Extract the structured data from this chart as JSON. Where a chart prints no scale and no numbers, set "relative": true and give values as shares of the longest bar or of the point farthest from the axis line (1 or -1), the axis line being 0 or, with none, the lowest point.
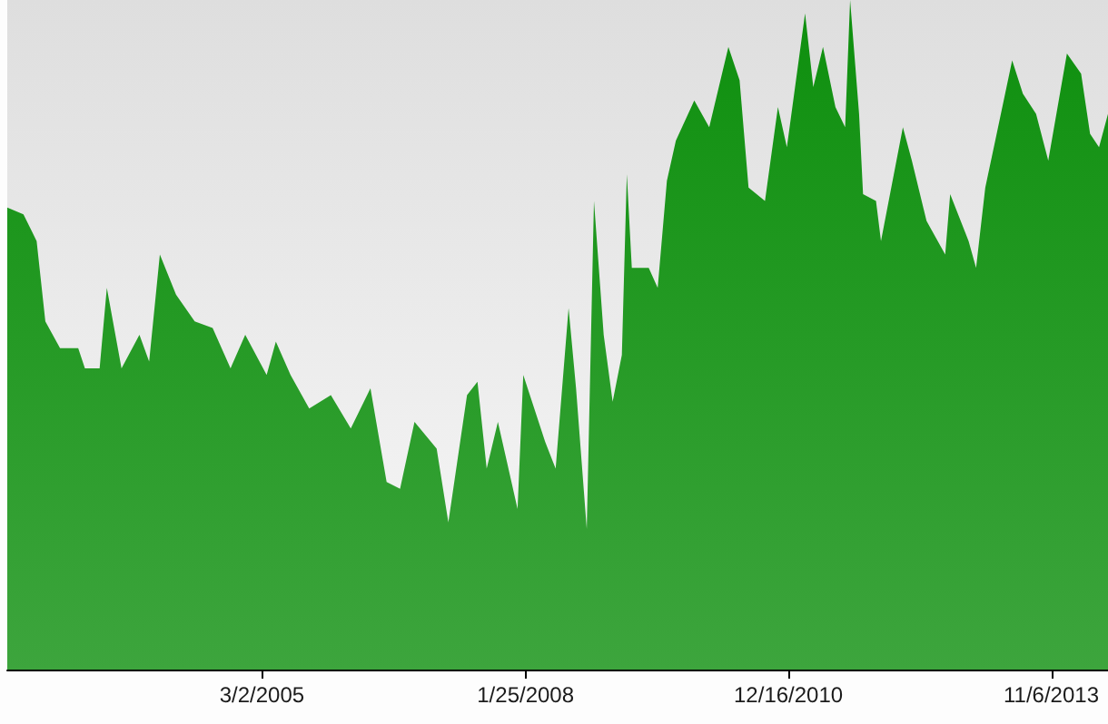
{
  "chart_data": {
    "type": "area",
    "relative": true,
    "xlim": [
      "2002-05-14",
      "2014-06-22"
    ],
    "xticks": [
      {
        "value": "2005-03-02",
        "label": "3/2/2005"
      },
      {
        "value": "2008-01-25",
        "label": "1/25/2008"
      },
      {
        "value": "2010-12-16",
        "label": "12/16/2010"
      },
      {
        "value": "2013-11-06",
        "label": "11/6/2013"
      }
    ],
    "series": [
      {
        "color": "#0d8f0d",
        "x": [
          "2002-05-14",
          "2002-07-18",
          "2002-09-09",
          "2002-10-14",
          "2002-12-12",
          "2003-02-23",
          "2003-03-22",
          "2003-05-20",
          "2003-06-18",
          "2003-08-16",
          "2003-10-27",
          "2003-12-05",
          "2004-01-17",
          "2004-03-22",
          "2004-06-05",
          "2004-08-16",
          "2004-10-27",
          "2004-12-25",
          "2005-03-21",
          "2005-04-27",
          "2005-06-25",
          "2005-09-08",
          "2005-12-04",
          "2006-02-22",
          "2006-05-12",
          "2006-07-16",
          "2006-09-08",
          "2006-11-05",
          "2007-02-02",
          "2007-03-21",
          "2007-06-04",
          "2007-07-16",
          "2007-08-22",
          "2007-10-06",
          "2007-12-24",
          "2008-01-16",
          "2008-04-13",
          "2008-05-25",
          "2008-07-16",
          "2008-08-15",
          "2008-09-27",
          "2008-10-26",
          "2008-12-04",
          "2009-01-09",
          "2009-02-15",
          "2009-03-07",
          "2009-03-27",
          "2009-06-03",
          "2009-07-09",
          "2009-08-15",
          "2009-09-20",
          "2009-12-03",
          "2010-02-01",
          "2010-04-19",
          "2010-06-03",
          "2010-07-09",
          "2010-09-13",
          "2010-11-04",
          "2010-12-10",
          "2011-02-21",
          "2011-03-26",
          "2011-05-04",
          "2011-06-23",
          "2011-08-01",
          "2011-08-21",
          "2011-09-26",
          "2011-10-12",
          "2011-12-03",
          "2011-12-23",
          "2012-03-20",
          "2012-04-25",
          "2012-06-23",
          "2012-09-06",
          "2012-09-26",
          "2012-12-09",
          "2013-01-08",
          "2013-02-14",
          "2013-03-26",
          "2013-06-02",
          "2013-07-15",
          "2013-09-06",
          "2013-10-25",
          "2014-01-08",
          "2014-03-06",
          "2014-04-11",
          "2014-05-17",
          "2014-06-22"
        ],
        "values": [
          0.69,
          0.68,
          0.64,
          0.52,
          0.48,
          0.48,
          0.45,
          0.45,
          0.57,
          0.45,
          0.5,
          0.46,
          0.62,
          0.56,
          0.52,
          0.51,
          0.45,
          0.5,
          0.44,
          0.49,
          0.44,
          0.39,
          0.41,
          0.36,
          0.42,
          0.28,
          0.27,
          0.37,
          0.33,
          0.22,
          0.41,
          0.43,
          0.3,
          0.37,
          0.24,
          0.44,
          0.34,
          0.3,
          0.54,
          0.42,
          0.21,
          0.7,
          0.5,
          0.4,
          0.47,
          0.74,
          0.6,
          0.6,
          0.57,
          0.73,
          0.79,
          0.85,
          0.81,
          0.93,
          0.88,
          0.72,
          0.7,
          0.84,
          0.78,
          0.98,
          0.87,
          0.93,
          0.84,
          0.81,
          1,
          0.83,
          0.71,
          0.7,
          0.64,
          0.81,
          0.76,
          0.67,
          0.62,
          0.71,
          0.64,
          0.6,
          0.72,
          0.79,
          0.91,
          0.86,
          0.83,
          0.76,
          0.92,
          0.89,
          0.8,
          0.78,
          0.83
        ]
      }
    ]
  }
}
